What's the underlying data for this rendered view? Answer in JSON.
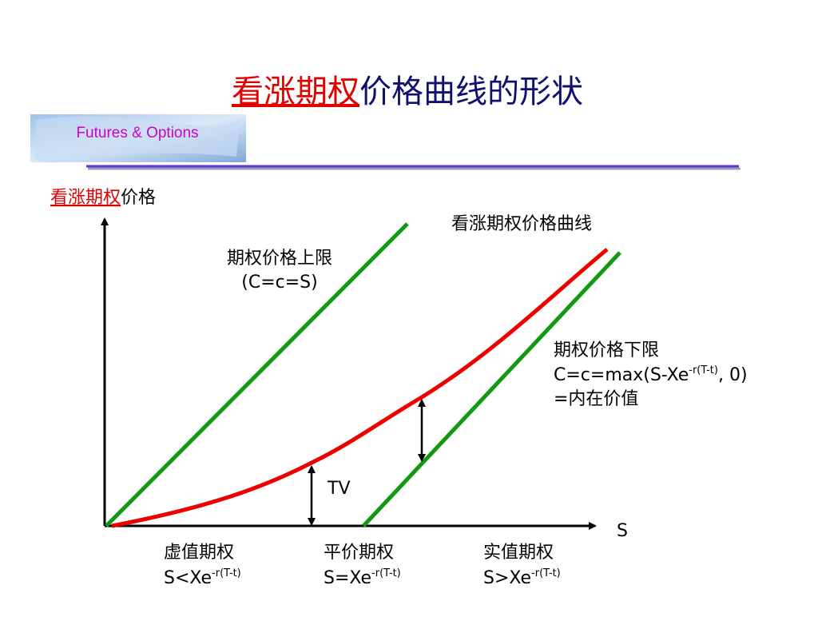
{
  "title": {
    "highlight": "看涨期权",
    "rest": "价格曲线的形状"
  },
  "logo": "Futures & Options",
  "y_axis_label": {
    "highlight": "看涨期权",
    "rest": "价格"
  },
  "x_axis_label": "S",
  "curve_label": "看涨期权价格曲线",
  "upper_bound": {
    "title": "期权价格上限",
    "formula": "(C=c=S)"
  },
  "lower_bound": {
    "title": "期权价格下限",
    "formula": {
      "base": "C=c=max(S-Xe",
      "exponent": "-r(T-t)",
      "tail": ", 0)"
    },
    "note": "=内在价值"
  },
  "time_value_label": "TV",
  "regions": [
    {
      "name": "虚值期权",
      "condition": "S<Xe",
      "exponent": "-r(T-t)"
    },
    {
      "name": "平价期权",
      "condition": "S=Xe",
      "exponent": "-r(T-t)"
    },
    {
      "name": "实值期权",
      "condition": "S>Xe",
      "exponent": "-r(T-t)"
    }
  ]
}
